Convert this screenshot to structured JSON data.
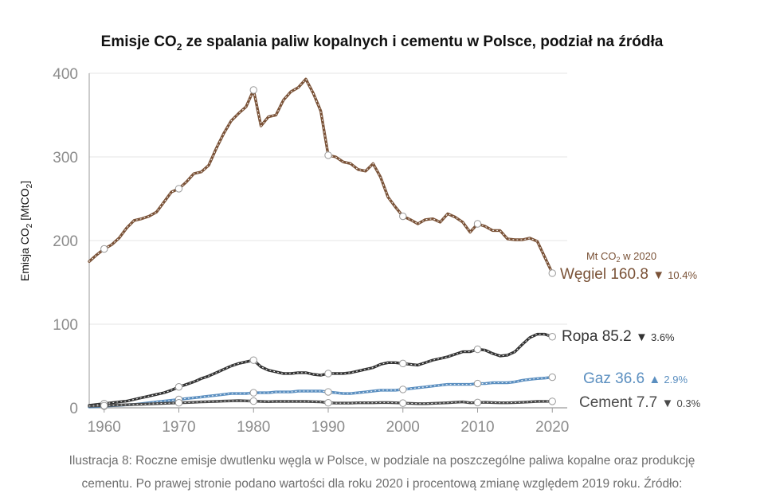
{
  "title": {
    "main": "Emisje CO",
    "sub": "2",
    "rest": " ze spalania paliw kopalnych i cementu w Polsce, podział na źródła"
  },
  "caption": {
    "line1": "Ilustracja 8: Roczne emisje dwutlenku węgla w Polsce, w podziale na poszczególne paliwa kopalne oraz produkcję",
    "line2": "cementu. Po prawej stronie podano wartości dla roku 2020 i procentową zmianę względem 2019 roku. Źródło:"
  },
  "colors": {
    "coal": "#7a5237",
    "oil": "#333333",
    "gas": "#5b8fc0",
    "cement": "#4a4a4a",
    "axis": "#9a9a9a",
    "grid": "#e6e6e6"
  },
  "chart_data": {
    "type": "line",
    "ylabel": {
      "main": "Emisja CO",
      "sub": "2",
      "rest": " [MtCO",
      "sub2": "2",
      "end": "]"
    },
    "xlim": [
      1958,
      2022
    ],
    "ylim": [
      0,
      400
    ],
    "x_ticks": [
      1960,
      1970,
      1980,
      1990,
      2000,
      2010,
      2020
    ],
    "y_ticks": [
      0,
      100,
      200,
      300,
      400
    ],
    "grid": true,
    "unit_note": {
      "main": "Mt CO",
      "sub": "2",
      "rest": " w 2020"
    },
    "series": [
      {
        "name": "Węgiel",
        "color_key": "coal",
        "value_2020": "160.8",
        "change": "▼",
        "change_pct": "10.4%",
        "x": [
          1958,
          1959,
          1960,
          1961,
          1962,
          1963,
          1964,
          1965,
          1966,
          1967,
          1968,
          1969,
          1970,
          1971,
          1972,
          1973,
          1974,
          1975,
          1976,
          1977,
          1978,
          1979,
          1980,
          1981,
          1982,
          1983,
          1984,
          1985,
          1986,
          1987,
          1988,
          1989,
          1990,
          1991,
          1992,
          1993,
          1994,
          1995,
          1996,
          1997,
          1998,
          1999,
          2000,
          2001,
          2002,
          2003,
          2004,
          2005,
          2006,
          2007,
          2008,
          2009,
          2010,
          2011,
          2012,
          2013,
          2014,
          2015,
          2016,
          2017,
          2018,
          2019,
          2020
        ],
        "y": [
          175,
          183,
          190,
          195,
          203,
          215,
          224,
          226,
          229,
          234,
          246,
          258,
          262,
          270,
          280,
          282,
          290,
          310,
          328,
          343,
          352,
          360,
          380,
          337,
          348,
          350,
          368,
          378,
          383,
          393,
          376,
          355,
          302,
          300,
          294,
          292,
          285,
          283,
          292,
          276,
          252,
          240,
          229,
          225,
          220,
          225,
          226,
          222,
          232,
          228,
          222,
          210,
          220,
          217,
          212,
          212,
          202,
          201,
          201,
          203,
          199,
          180,
          161
        ]
      },
      {
        "name": "Ropa",
        "color_key": "oil",
        "value_2020": "85.2",
        "change": "▼",
        "change_pct": "3.6%",
        "x": [
          1958,
          1959,
          1960,
          1961,
          1962,
          1963,
          1964,
          1965,
          1966,
          1967,
          1968,
          1969,
          1970,
          1971,
          1972,
          1973,
          1974,
          1975,
          1976,
          1977,
          1978,
          1979,
          1980,
          1981,
          1982,
          1983,
          1984,
          1985,
          1986,
          1987,
          1988,
          1989,
          1990,
          1991,
          1992,
          1993,
          1994,
          1995,
          1996,
          1997,
          1998,
          1999,
          2000,
          2001,
          2002,
          2003,
          2004,
          2005,
          2006,
          2007,
          2008,
          2009,
          2010,
          2011,
          2012,
          2013,
          2014,
          2015,
          2016,
          2017,
          2018,
          2019,
          2020
        ],
        "y": [
          3,
          4,
          5,
          6,
          7,
          8,
          10,
          12,
          14,
          16,
          18,
          21,
          25,
          28,
          31,
          35,
          38,
          42,
          46,
          50,
          53,
          55,
          57,
          49,
          45,
          43,
          41,
          41,
          42,
          42,
          40,
          39,
          41,
          41,
          41,
          42,
          44,
          46,
          48,
          52,
          54,
          54,
          53,
          52,
          51,
          54,
          57,
          59,
          61,
          64,
          67,
          67,
          70,
          69,
          65,
          62,
          63,
          67,
          76,
          84,
          88,
          88,
          85
        ]
      },
      {
        "name": "Gaz",
        "color_key": "gas",
        "value_2020": "36.6",
        "change": "▲",
        "change_pct": "2.9%",
        "x": [
          1958,
          1959,
          1960,
          1961,
          1962,
          1963,
          1964,
          1965,
          1966,
          1967,
          1968,
          1969,
          1970,
          1971,
          1972,
          1973,
          1974,
          1975,
          1976,
          1977,
          1978,
          1979,
          1980,
          1981,
          1982,
          1983,
          1984,
          1985,
          1986,
          1987,
          1988,
          1989,
          1990,
          1991,
          1992,
          1993,
          1994,
          1995,
          1996,
          1997,
          1998,
          1999,
          2000,
          2001,
          2002,
          2003,
          2004,
          2005,
          2006,
          2007,
          2008,
          2009,
          2010,
          2011,
          2012,
          2013,
          2014,
          2015,
          2016,
          2017,
          2018,
          2019,
          2020
        ],
        "y": [
          1,
          1.5,
          2,
          2.5,
          3,
          3.5,
          4,
          5,
          6,
          7,
          8,
          9,
          10,
          11,
          12,
          13,
          14,
          15,
          16,
          17,
          17,
          17,
          18,
          18,
          18,
          19,
          19,
          19,
          20,
          20,
          20,
          20,
          19,
          18,
          17,
          17,
          18,
          19,
          20,
          21,
          21,
          21,
          22,
          23,
          24,
          25,
          26,
          27,
          28,
          28,
          28,
          28,
          29,
          29,
          30,
          30,
          30,
          31,
          33,
          34,
          35,
          35.5,
          36.6
        ]
      },
      {
        "name": "Cement",
        "color_key": "cement",
        "value_2020": "7.7",
        "change": "▼",
        "change_pct": "0.3%",
        "x": [
          1958,
          1959,
          1960,
          1961,
          1962,
          1963,
          1964,
          1965,
          1966,
          1967,
          1968,
          1969,
          1970,
          1971,
          1972,
          1973,
          1974,
          1975,
          1976,
          1977,
          1978,
          1979,
          1980,
          1981,
          1982,
          1983,
          1984,
          1985,
          1986,
          1987,
          1988,
          1989,
          1990,
          1991,
          1992,
          1993,
          1994,
          1995,
          1996,
          1997,
          1998,
          1999,
          2000,
          2001,
          2002,
          2003,
          2004,
          2005,
          2006,
          2007,
          2008,
          2009,
          2010,
          2011,
          2012,
          2013,
          2014,
          2015,
          2016,
          2017,
          2018,
          2019,
          2020
        ],
        "y": [
          2,
          2.3,
          2.6,
          3,
          3.3,
          3.6,
          4,
          4.3,
          4.6,
          5,
          5.3,
          5.6,
          6,
          6.3,
          6.6,
          7,
          7.3,
          7.6,
          8,
          8.3,
          8.6,
          8.3,
          8,
          7.6,
          7.3,
          7.6,
          7.6,
          7.6,
          7.6,
          7.6,
          7.3,
          7,
          6,
          5.6,
          5.6,
          5.6,
          6,
          6,
          6,
          6.3,
          6.3,
          6,
          5.6,
          5.3,
          5,
          5,
          5.3,
          5.6,
          6,
          6.6,
          7,
          6,
          6.3,
          6.6,
          6.3,
          6,
          6,
          6.3,
          6.6,
          7,
          7.6,
          7.7,
          7.7
        ]
      }
    ]
  }
}
